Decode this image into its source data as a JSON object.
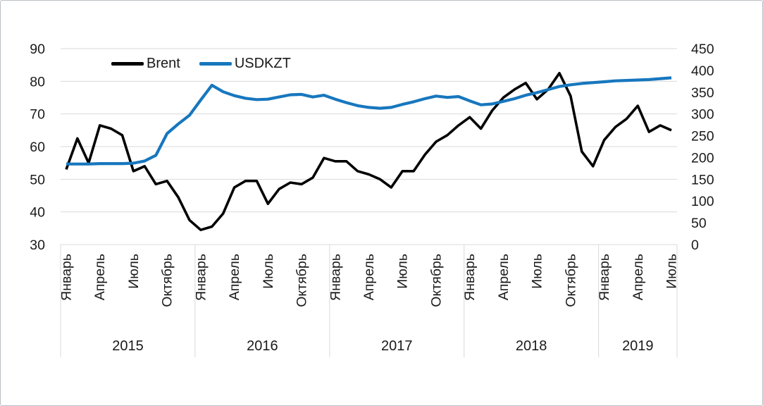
{
  "chart_data": {
    "type": "line",
    "title": "",
    "xlabel": "",
    "ylabel_left": "",
    "ylabel_right": "",
    "grid": "horizontal",
    "legend_position": "top",
    "x_unit": "month",
    "x_start": "2015-01",
    "x_end": "2019-07",
    "year_groups": [
      {
        "label": "2015",
        "months": 12
      },
      {
        "label": "2016",
        "months": 12
      },
      {
        "label": "2017",
        "months": 12
      },
      {
        "label": "2018",
        "months": 12
      },
      {
        "label": "2019",
        "months": 7
      }
    ],
    "month_tick_labels": [
      {
        "index": 0,
        "label": "Январь"
      },
      {
        "index": 3,
        "label": "Апрель"
      },
      {
        "index": 6,
        "label": "Июль"
      },
      {
        "index": 9,
        "label": "Октябрь"
      },
      {
        "index": 12,
        "label": "Январь"
      },
      {
        "index": 15,
        "label": "Апрель"
      },
      {
        "index": 18,
        "label": "Июль"
      },
      {
        "index": 21,
        "label": "Октябрь"
      },
      {
        "index": 24,
        "label": "Январь"
      },
      {
        "index": 27,
        "label": "Апрель"
      },
      {
        "index": 30,
        "label": "Июль"
      },
      {
        "index": 33,
        "label": "Октябрь"
      },
      {
        "index": 36,
        "label": "Январь"
      },
      {
        "index": 39,
        "label": "Апрель"
      },
      {
        "index": 42,
        "label": "Июль"
      },
      {
        "index": 45,
        "label": "Октябрь"
      },
      {
        "index": 48,
        "label": "Январь"
      },
      {
        "index": 51,
        "label": "Апрель"
      },
      {
        "index": 54,
        "label": "Июль"
      }
    ],
    "left_axis": {
      "min": 30,
      "max": 90,
      "ticks": [
        90,
        80,
        70,
        60,
        50,
        40,
        30
      ]
    },
    "right_axis": {
      "min": 0,
      "max": 450,
      "ticks": [
        450,
        400,
        350,
        300,
        250,
        200,
        150,
        100,
        50,
        0
      ]
    },
    "series": [
      {
        "name": "Brent",
        "axis": "left",
        "color": "#000000",
        "values": [
          53,
          62.5,
          55,
          66.5,
          65.5,
          63.5,
          52.5,
          54,
          48.5,
          49.5,
          44.5,
          37.5,
          34.5,
          35.5,
          39.5,
          47.5,
          49.5,
          49.5,
          42.5,
          47,
          49,
          48.5,
          50.5,
          56.5,
          55.5,
          55.5,
          52.5,
          51.5,
          50,
          47.5,
          52.5,
          52.5,
          57.5,
          61.5,
          63.5,
          66.5,
          69,
          65.5,
          71,
          75,
          77.5,
          79.5,
          74.5,
          77.5,
          82.5,
          75.5,
          58.5,
          54,
          62,
          66,
          68.5,
          72.5,
          64.5,
          66.5,
          65
        ]
      },
      {
        "name": "USDKZT",
        "axis": "right",
        "color": "#1777BE",
        "values": [
          185,
          185,
          185,
          186,
          186,
          186,
          187,
          192,
          205,
          255,
          277,
          297,
          332,
          366,
          351,
          342,
          336,
          333,
          334,
          339,
          344,
          345,
          339,
          343,
          334,
          326,
          319,
          315,
          313,
          315,
          322,
          328,
          335,
          341,
          338,
          340,
          330,
          321,
          323,
          329,
          335,
          343,
          349,
          356,
          363,
          367,
          370,
          372,
          374,
          376,
          377,
          378,
          379,
          381,
          383
        ]
      }
    ],
    "colors": {
      "gridline": "#D9D9D9",
      "axis_text": "#1A1A1A",
      "background": "#FFFFFF"
    }
  },
  "legend": {
    "items": [
      {
        "label": "Brent",
        "color": "#000000"
      },
      {
        "label": "USDKZT",
        "color": "#1777BE"
      }
    ]
  }
}
